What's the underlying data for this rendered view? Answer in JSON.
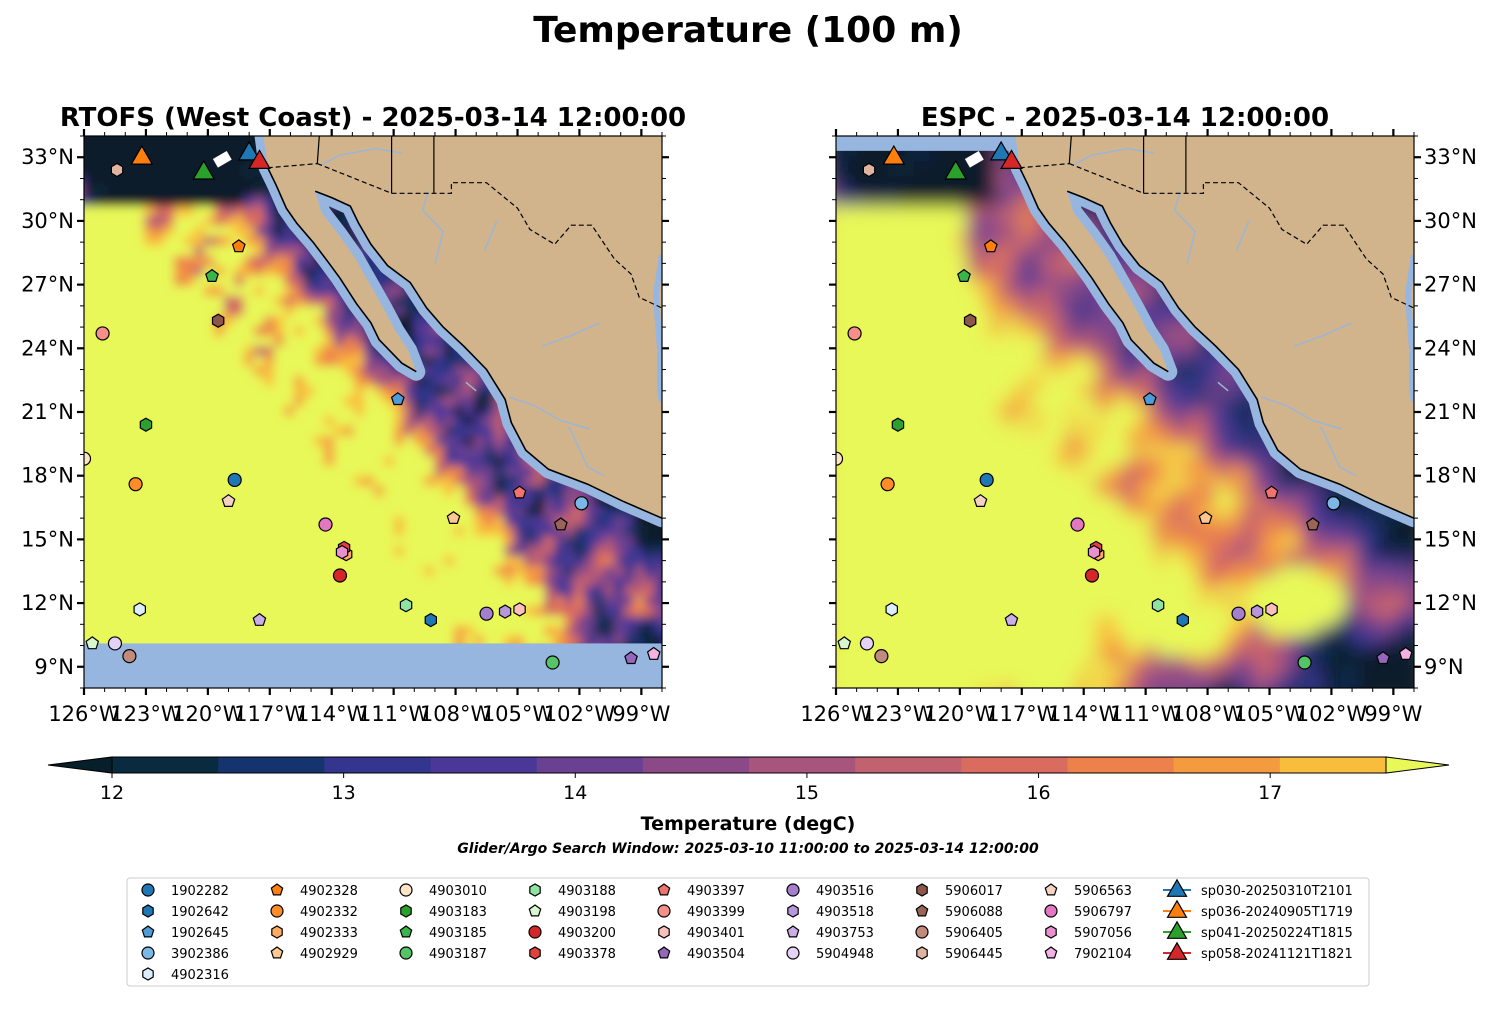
{
  "figure": {
    "title": "Temperature (100 m)",
    "search_window": "Glider/Argo Search Window: 2025-03-10 11:00:00 to 2025-03-14 12:00:00"
  },
  "colors": {
    "land": "#d2b48c",
    "ocean_mask": "#97b6df",
    "coast": "#000000",
    "river": "#9ab5d6"
  },
  "colorbar": {
    "label": "Temperature (degC)",
    "min": 12,
    "max": 17.5,
    "step": 0.5,
    "ticks": [
      "12",
      "13",
      "14",
      "15",
      "16",
      "17"
    ],
    "tick_values": [
      12,
      13,
      14,
      15,
      16,
      17
    ],
    "colors": [
      "#0a2a3f",
      "#15336e",
      "#33358f",
      "#4b3797",
      "#6a4092",
      "#8b4a87",
      "#a8557d",
      "#c2616f",
      "#da6c5f",
      "#ec814c",
      "#f59b3f",
      "#f9bd3e"
    ],
    "under": "#071e2b",
    "over": "#e8f859"
  },
  "chart_data": [
    {
      "type": "heatmap",
      "title": "RTOFS (West Coast) - 2025-03-14 12:00:00",
      "xlim": [
        -126,
        -98
      ],
      "ylim": [
        8,
        34
      ],
      "xticks": [
        "126°W",
        "123°W",
        "120°W",
        "117°W",
        "114°W",
        "111°W",
        "108°W",
        "105°W",
        "102°W",
        "99°W"
      ],
      "yticks": [
        "9°N",
        "12°N",
        "15°N",
        "18°N",
        "21°N",
        "24°N",
        "27°N",
        "30°N",
        "33°N"
      ],
      "y_axis_side": "left"
    },
    {
      "type": "heatmap",
      "title": "ESPC - 2025-03-14 12:00:00",
      "xlim": [
        -126,
        -98
      ],
      "ylim": [
        8,
        34
      ],
      "xticks": [
        "126°W",
        "123°W",
        "120°W",
        "117°W",
        "114°W",
        "111°W",
        "108°W",
        "105°W",
        "102°W",
        "99°W"
      ],
      "yticks": [
        "9°N",
        "12°N",
        "15°N",
        "18°N",
        "21°N",
        "24°N",
        "27°N",
        "30°N",
        "33°N"
      ],
      "y_axis_side": "right"
    }
  ],
  "floats": [
    {
      "id": "1902282",
      "marker": "circle",
      "color": "#1f77b4",
      "lon": -118.7,
      "lat": 17.8
    },
    {
      "id": "1902642",
      "marker": "hexagon",
      "color": "#1f77b4",
      "lon": -109.2,
      "lat": 11.2
    },
    {
      "id": "1902645",
      "marker": "pentagon",
      "color": "#4f9bd9",
      "lon": -110.8,
      "lat": 21.6
    },
    {
      "id": "3902386",
      "marker": "circle",
      "color": "#7cb8e6",
      "lon": -101.9,
      "lat": 16.7
    },
    {
      "id": "4902316",
      "marker": "hexagon",
      "color": "#dbeefa",
      "lon": -123.3,
      "lat": 11.7
    },
    {
      "id": "4902328",
      "marker": "pentagon",
      "color": "#ff7f0e",
      "lon": -118.5,
      "lat": 28.8
    },
    {
      "id": "4902332",
      "marker": "circle",
      "color": "#ff8c2a",
      "lon": -123.5,
      "lat": 17.6
    },
    {
      "id": "4902333",
      "marker": "hexagon",
      "color": "#ffab61",
      "lon": -113.3,
      "lat": 14.3
    },
    {
      "id": "4902929",
      "marker": "pentagon",
      "color": "#ffc890",
      "lon": -108.1,
      "lat": 16.0
    },
    {
      "id": "4903010",
      "marker": "circle",
      "color": "#ffe5c6",
      "lon": -126.0,
      "lat": 18.8
    },
    {
      "id": "4903183",
      "marker": "hexagon",
      "color": "#2ca02c",
      "lon": -123.0,
      "lat": 20.4
    },
    {
      "id": "4903185",
      "marker": "pentagon",
      "color": "#39b54a",
      "lon": -119.8,
      "lat": 27.4
    },
    {
      "id": "4903187",
      "marker": "circle",
      "color": "#55c466",
      "lon": -103.3,
      "lat": 9.2
    },
    {
      "id": "4903188",
      "marker": "hexagon",
      "color": "#8fe3a0",
      "lon": -110.4,
      "lat": 11.9
    },
    {
      "id": "4903198",
      "marker": "pentagon",
      "color": "#d6f7cf",
      "lon": -125.6,
      "lat": 10.1
    },
    {
      "id": "4903200",
      "marker": "circle",
      "color": "#d62728",
      "lon": -113.6,
      "lat": 13.3
    },
    {
      "id": "4903378",
      "marker": "hexagon",
      "color": "#e0413f",
      "lon": -113.4,
      "lat": 14.6
    },
    {
      "id": "4903397",
      "marker": "pentagon",
      "color": "#f0746d",
      "lon": -104.9,
      "lat": 17.2
    },
    {
      "id": "4903399",
      "marker": "circle",
      "color": "#f58f8a",
      "lon": -125.1,
      "lat": 24.7
    },
    {
      "id": "4903401",
      "marker": "hexagon",
      "color": "#fbc0bd",
      "lon": -104.9,
      "lat": 11.7
    },
    {
      "id": "4903504",
      "marker": "pentagon",
      "color": "#9467bd",
      "lon": -99.5,
      "lat": 9.4
    },
    {
      "id": "4903516",
      "marker": "circle",
      "color": "#a57fcd",
      "lon": -106.5,
      "lat": 11.5
    },
    {
      "id": "4903518",
      "marker": "hexagon",
      "color": "#b896dc",
      "lon": -105.6,
      "lat": 11.6
    },
    {
      "id": "4903753",
      "marker": "pentagon",
      "color": "#c9aee8",
      "lon": -117.5,
      "lat": 11.2
    },
    {
      "id": "5904948",
      "marker": "circle",
      "color": "#e4d3f7",
      "lon": -124.5,
      "lat": 10.1
    },
    {
      "id": "5906017",
      "marker": "hexagon",
      "color": "#8c564b",
      "lon": -119.5,
      "lat": 25.3
    },
    {
      "id": "5906088",
      "marker": "pentagon",
      "color": "#9a6458",
      "lon": -102.9,
      "lat": 15.7
    },
    {
      "id": "5906405",
      "marker": "circle",
      "color": "#c08b7c",
      "lon": -123.8,
      "lat": 9.5
    },
    {
      "id": "5906445",
      "marker": "hexagon",
      "color": "#e1b3a3",
      "lon": -124.4,
      "lat": 32.4
    },
    {
      "id": "5906563",
      "marker": "pentagon",
      "color": "#f6d2c5",
      "lon": -119.0,
      "lat": 16.8
    },
    {
      "id": "5906797",
      "marker": "circle",
      "color": "#e377c2",
      "lon": -114.3,
      "lat": 15.7
    },
    {
      "id": "5907056",
      "marker": "hexagon",
      "color": "#ea8fd0",
      "lon": -113.5,
      "lat": 14.4
    },
    {
      "id": "7902104",
      "marker": "pentagon",
      "color": "#f3b2e2",
      "lon": -98.4,
      "lat": 9.6
    }
  ],
  "gliders": [
    {
      "id": "sp030-20250310T2101",
      "color": "#1f77b4",
      "lon": -118.0,
      "lat": 33.3
    },
    {
      "id": "sp036-20240905T1719",
      "color": "#ff7f0e",
      "lon": -123.2,
      "lat": 33.1
    },
    {
      "id": "sp041-20250224T1815",
      "color": "#2ca02c",
      "lon": -120.2,
      "lat": 32.4
    },
    {
      "id": "sp058-20241121T1821",
      "color": "#d62728",
      "lon": -117.5,
      "lat": 32.9
    }
  ]
}
